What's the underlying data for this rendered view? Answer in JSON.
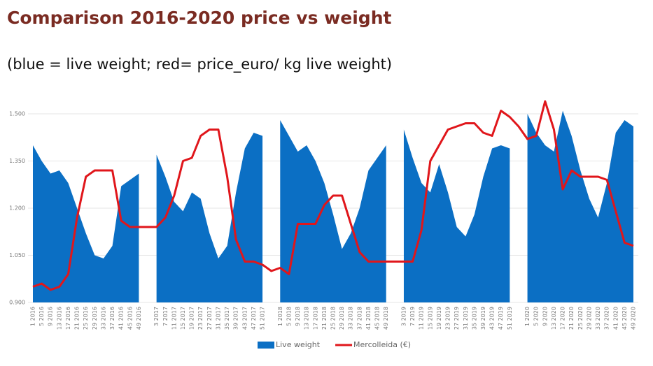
{
  "chart_data": {
    "type": "area-line",
    "title": "Comparison 2016-2020 price vs weight",
    "subtitle": "(blue = live weight; red= price_euro/ kg live weight)",
    "categories": [
      "1 2016",
      "5 2016",
      "9 2016",
      "13 2016",
      "17 2016",
      "21 2016",
      "25 2016",
      "29 2016",
      "33 2016",
      "37 2016",
      "41 2016",
      "45 2016",
      "49 2016",
      null,
      "3 2017",
      "7 2017",
      "11 2017",
      "15 2017",
      "19 2017",
      "23 2017",
      "27 2017",
      "31 2017",
      "35 2017",
      "39 2017",
      "43 2017",
      "47 2017",
      "51 2017",
      null,
      "1 2018",
      "5 2018",
      "9 2018",
      "13 2018",
      "17 2018",
      "21 2018",
      "25 2018",
      "29 2018",
      "33 2018",
      "37 2018",
      "41 2018",
      "45 2018",
      "49 2018",
      null,
      "3 2019",
      "7 2019",
      "11 2019",
      "15 2019",
      "19 2019",
      "23 2019",
      "27 2019",
      "31 2019",
      "35 2019",
      "39 2019",
      "43 2019",
      "47 2019",
      "51 2019",
      null,
      "1 2020",
      "5 2020",
      "9 2020",
      "13 2020",
      "17 2020",
      "21 2020",
      "25 2020",
      "29 2020",
      "33 2020",
      "37 2020",
      "41 2020",
      "45 2020",
      "49 2020"
    ],
    "series": [
      {
        "name": "Live weight",
        "kind": "area",
        "color": "#0b6fc4",
        "values": [
          1.4,
          1.35,
          1.31,
          1.32,
          1.28,
          1.2,
          1.12,
          1.05,
          1.04,
          1.08,
          1.27,
          1.29,
          1.31,
          null,
          1.37,
          1.3,
          1.22,
          1.19,
          1.25,
          1.23,
          1.12,
          1.04,
          1.08,
          1.25,
          1.39,
          1.44,
          1.43,
          null,
          1.48,
          1.43,
          1.38,
          1.4,
          1.35,
          1.28,
          1.18,
          1.07,
          1.12,
          1.2,
          1.32,
          1.36,
          1.4,
          null,
          1.45,
          1.36,
          1.28,
          1.25,
          1.34,
          1.25,
          1.14,
          1.11,
          1.18,
          1.3,
          1.39,
          1.4,
          1.39,
          null,
          1.5,
          1.44,
          1.4,
          1.38,
          1.51,
          1.43,
          1.32,
          1.23,
          1.17,
          1.28,
          1.44,
          1.48,
          1.46
        ]
      },
      {
        "name": "Mercolleida (€)",
        "kind": "line",
        "color": "#e0161b",
        "values": [
          0.95,
          0.96,
          0.94,
          0.95,
          0.99,
          1.17,
          1.3,
          1.32,
          1.32,
          1.32,
          1.16,
          1.14,
          1.14,
          1.14,
          1.14,
          1.17,
          1.24,
          1.35,
          1.36,
          1.43,
          1.45,
          1.45,
          1.3,
          1.1,
          1.03,
          1.03,
          1.02,
          1.0,
          1.01,
          0.99,
          1.15,
          1.15,
          1.15,
          1.21,
          1.24,
          1.24,
          1.15,
          1.06,
          1.03,
          1.03,
          1.03,
          1.03,
          1.03,
          1.03,
          1.13,
          1.35,
          1.4,
          1.45,
          1.46,
          1.47,
          1.47,
          1.44,
          1.43,
          1.51,
          1.49,
          1.46,
          1.42,
          1.43,
          1.54,
          1.45,
          1.26,
          1.32,
          1.3,
          1.3,
          1.3,
          1.29,
          1.19,
          1.09,
          1.08
        ]
      }
    ],
    "ylim": [
      0.9,
      1.55
    ],
    "yticks": [
      {
        "value": 0.9,
        "label": "0.900"
      },
      {
        "value": 1.05,
        "label": "1.050"
      },
      {
        "value": 1.2,
        "label": "1.200"
      },
      {
        "value": 1.35,
        "label": "1.350"
      },
      {
        "value": 1.5,
        "label": "1.500"
      }
    ],
    "grid": true,
    "legend": "bottom"
  }
}
